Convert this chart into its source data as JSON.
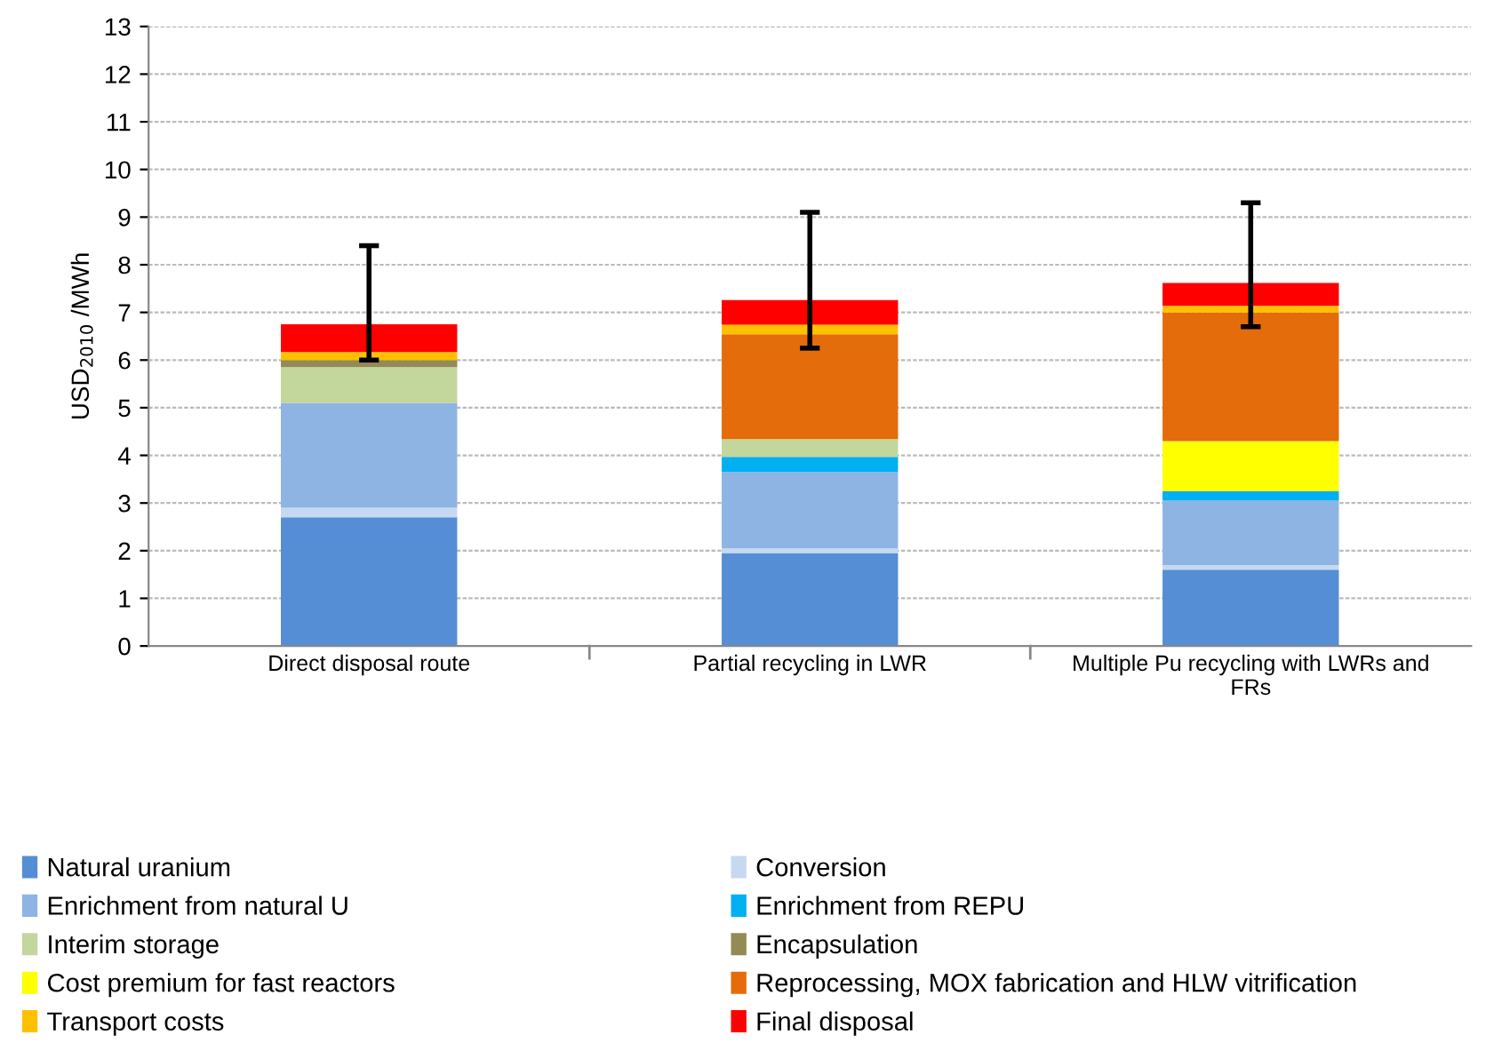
{
  "chart_data": {
    "type": "bar",
    "stacked": true,
    "ylabel": "USD$_{2010}$ /MWh",
    "categories": [
      "Direct disposal route",
      "Partial recycling in LWR",
      "Multiple Pu recycling with LWRs and\nFRs"
    ],
    "series": [
      {
        "name": "Natural uranium",
        "color": "#558ed5",
        "values": [
          2.7,
          1.95,
          1.6
        ]
      },
      {
        "name": "Conversion",
        "color": "#c6d9f1",
        "values": [
          0.2,
          0.1,
          0.1
        ]
      },
      {
        "name": "Enrichment from natural U",
        "color": "#8eb4e3",
        "values": [
          2.2,
          1.6,
          1.35
        ]
      },
      {
        "name": "Enrichment from REPU",
        "color": "#00b0f0",
        "values": [
          null,
          0.32,
          0.2
        ]
      },
      {
        "name": "Interim storage",
        "color": "#c3d69b",
        "values": [
          0.75,
          0.37,
          null
        ]
      },
      {
        "name": "Encapsulation",
        "color": "#948a54",
        "values": [
          0.15,
          null,
          null
        ]
      },
      {
        "name": "Cost premium for fast reactors",
        "color": "#ffff00",
        "values": [
          null,
          null,
          1.05
        ]
      },
      {
        "name": "Reprocessing, MOX fabrication and HLW vitrification",
        "color": "#e46c0a",
        "values": [
          null,
          2.2,
          2.7
        ]
      },
      {
        "name": "Transport costs",
        "color": "#ffc000",
        "values": [
          0.17,
          0.2,
          0.14
        ]
      },
      {
        "name": "Final disposal",
        "color": "#ff0000",
        "values": [
          0.58,
          0.52,
          0.48
        ],
        "errors": [
          [
            6.0,
            8.4
          ],
          [
            6.25,
            9.1
          ],
          [
            6.7,
            9.3
          ]
        ]
      }
    ],
    "ylim": [
      0,
      13
    ],
    "yticks": [
      0,
      1,
      2,
      3,
      4,
      5,
      6,
      7,
      8,
      9,
      10,
      11,
      12,
      13
    ],
    "grid": "y",
    "legend": "bottom"
  }
}
